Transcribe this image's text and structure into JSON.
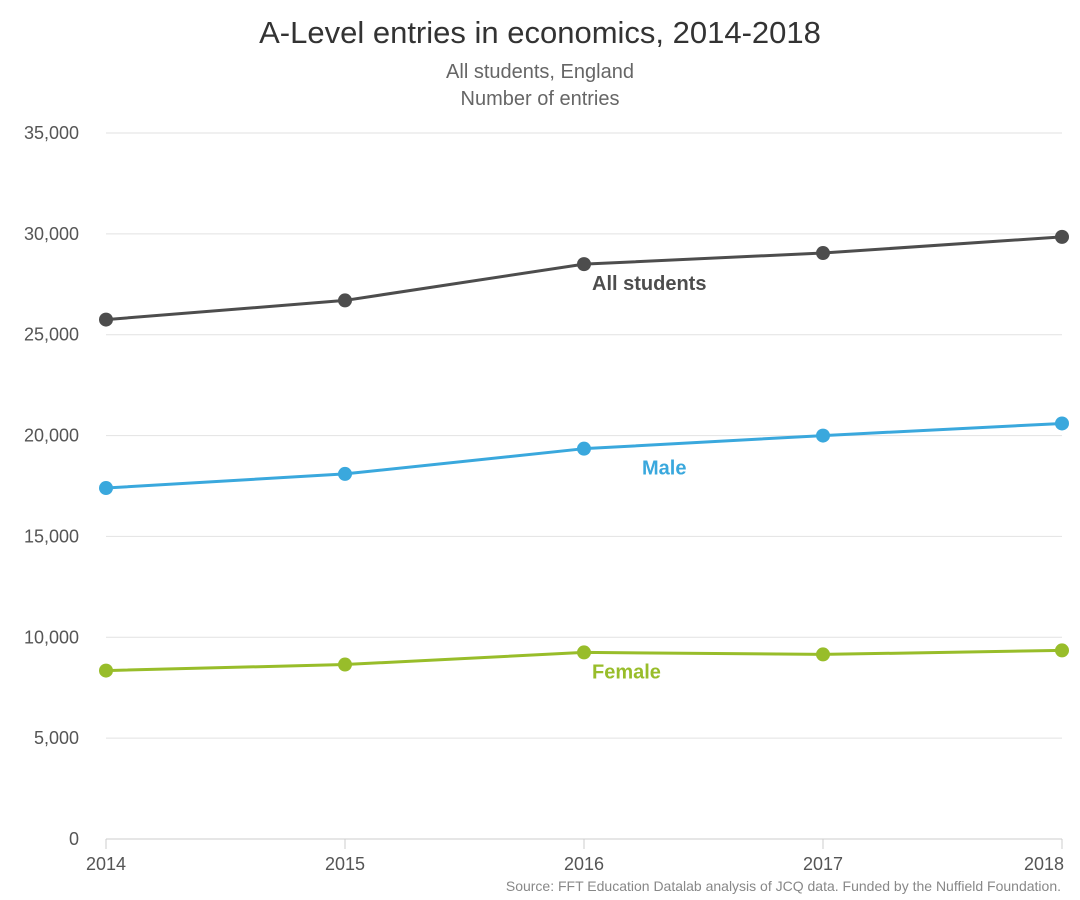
{
  "chart_data": {
    "type": "line",
    "title": "A-Level entries in economics, 2014-2018",
    "subtitle_lines": [
      "All students, England",
      "Number of entries"
    ],
    "x": [
      "2014",
      "2015",
      "2016",
      "2017",
      "2018"
    ],
    "ylim": [
      0,
      35000
    ],
    "yticks": [
      0,
      5000,
      10000,
      15000,
      20000,
      25000,
      30000,
      35000
    ],
    "ytick_labels": [
      "0",
      "5,000",
      "10,000",
      "15,000",
      "20,000",
      "25,000",
      "30,000",
      "35,000"
    ],
    "grid": true,
    "series": [
      {
        "name": "All students",
        "values": [
          25750,
          26700,
          28500,
          29050,
          29850
        ],
        "color": "#4d4d4d",
        "label_anchor_index": 2
      },
      {
        "name": "Male",
        "values": [
          17400,
          18100,
          19350,
          20000,
          20600
        ],
        "color": "#3aa8dd",
        "label_anchor_index": 2
      },
      {
        "name": "Female",
        "values": [
          8350,
          8650,
          9250,
          9150,
          9350
        ],
        "color": "#98bd2a",
        "label_anchor_index": 2
      }
    ],
    "source": "Source: FFT Education Datalab analysis of JCQ data. Funded by the Nuffield Foundation."
  }
}
